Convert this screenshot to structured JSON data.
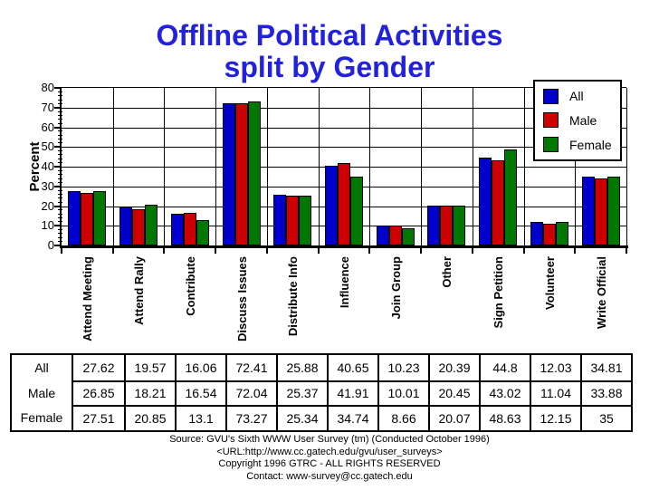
{
  "title": {
    "line1": "Offline Political Activities",
    "line2": "split by Gender"
  },
  "colors": {
    "title_blue": "#2222DD",
    "all_blue": "#0000CC",
    "male_red": "#CC0000",
    "female_green": "#007700"
  },
  "chart_data": {
    "type": "bar",
    "title": "Offline Political Activities split by Gender",
    "xlabel": "",
    "ylabel": "Percent",
    "ylim": [
      0,
      80
    ],
    "ytick_step": 10,
    "grid": true,
    "legend_position": "top-right",
    "categories": [
      "Attend Meeting",
      "Attend Rally",
      "Contribute",
      "Discuss Issues",
      "Distribute Info",
      "Influence",
      "Join Group",
      "Other",
      "Sign Petition",
      "Volunteer",
      "Write Official"
    ],
    "series": [
      {
        "name": "All",
        "color": "#0000CC",
        "values": [
          27.62,
          19.57,
          16.06,
          72.41,
          25.88,
          40.65,
          10.23,
          20.39,
          44.8,
          12.03,
          34.81
        ]
      },
      {
        "name": "Male",
        "color": "#CC0000",
        "values": [
          26.85,
          18.21,
          16.54,
          72.04,
          25.37,
          41.91,
          10.01,
          20.45,
          43.02,
          11.04,
          33.88
        ]
      },
      {
        "name": "Female",
        "color": "#007700",
        "values": [
          27.51,
          20.85,
          13.1,
          73.27,
          25.34,
          34.74,
          8.66,
          20.07,
          48.63,
          12.15,
          35
        ]
      }
    ]
  },
  "footer": {
    "lines": [
      "Source: GVU's Sixth WWW User Survey (tm) (Conducted October 1996)",
      "<URL:http://www.cc.gatech.edu/gvu/user_surveys>",
      "Copyright 1996 GTRC - ALL RIGHTS RESERVED",
      "Contact: www-survey@cc.gatech.edu"
    ]
  }
}
